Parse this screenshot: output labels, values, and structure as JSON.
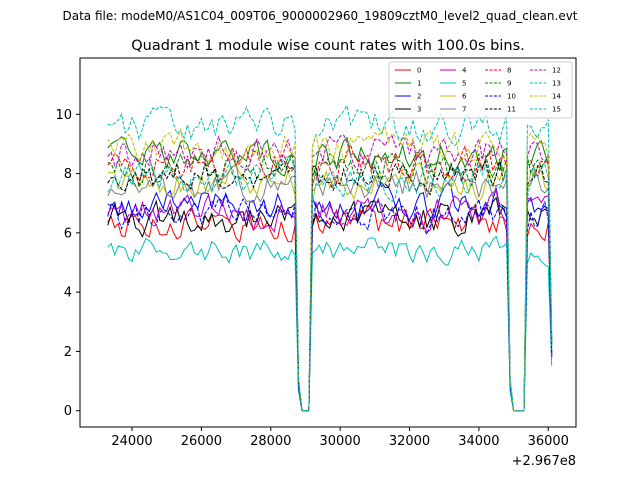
{
  "chart_data": {
    "type": "line",
    "suptitle": "Data file: modeM0/AS1C04_009T06_9000002960_19809cztM0_level2_quad_clean.evt",
    "title": "Quadrant 1 module wise count rates with 100.0s bins.",
    "xlabel": "",
    "ylabel": "",
    "x_offset_label": "+2.967e8",
    "x_offset": 296700000,
    "xlim": [
      22500,
      36800
    ],
    "ylim": [
      -0.55,
      11.9
    ],
    "x_ticks": [
      24000,
      26000,
      28000,
      30000,
      32000,
      34000,
      36000
    ],
    "x_tick_labels": [
      "24000",
      "26000",
      "28000",
      "30000",
      "32000",
      "34000",
      "36000"
    ],
    "y_ticks": [
      0,
      2,
      4,
      6,
      8,
      10
    ],
    "y_tick_labels": [
      "0",
      "2",
      "4",
      "6",
      "8",
      "10"
    ],
    "grid": false,
    "legend_position": "top-right",
    "x_start": 23300,
    "bin_width": 100,
    "n_points": 129,
    "gaps": [
      [
        28900,
        29000,
        29100
      ],
      [
        35000,
        35100,
        35200,
        35300
      ]
    ],
    "series": [
      {
        "name": "0",
        "color": "#ff0000",
        "dash": "solid",
        "mean": 6.3,
        "noise": 0.45,
        "seed": 1
      },
      {
        "name": "1",
        "color": "#008000",
        "dash": "solid",
        "mean": 8.6,
        "noise": 0.45,
        "seed": 2
      },
      {
        "name": "2",
        "color": "#0000ff",
        "dash": "solid",
        "mean": 7.0,
        "noise": 0.45,
        "seed": 3
      },
      {
        "name": "3",
        "color": "#000000",
        "dash": "solid",
        "mean": 6.5,
        "noise": 0.45,
        "seed": 4
      },
      {
        "name": "4",
        "color": "#bf00bf",
        "dash": "solid",
        "mean": 6.7,
        "noise": 0.45,
        "seed": 5
      },
      {
        "name": "5",
        "color": "#00bfbf",
        "dash": "solid",
        "mean": 5.4,
        "noise": 0.35,
        "seed": 6
      },
      {
        "name": "6",
        "color": "#bfbf00",
        "dash": "solid",
        "mean": 7.7,
        "noise": 0.45,
        "seed": 7
      },
      {
        "name": "7",
        "color": "#808080",
        "dash": "solid",
        "mean": 7.6,
        "noise": 0.45,
        "seed": 8
      },
      {
        "name": "8",
        "color": "#ff0000",
        "dash": "dashed",
        "mean": 8.3,
        "noise": 0.45,
        "seed": 9
      },
      {
        "name": "9",
        "color": "#008000",
        "dash": "dashed",
        "mean": 8.2,
        "noise": 0.45,
        "seed": 10
      },
      {
        "name": "10",
        "color": "#0000ff",
        "dash": "dashed",
        "mean": 6.6,
        "noise": 0.45,
        "seed": 11
      },
      {
        "name": "11",
        "color": "#000000",
        "dash": "dashed",
        "mean": 8.0,
        "noise": 0.45,
        "seed": 12
      },
      {
        "name": "12",
        "color": "#bf00bf",
        "dash": "dashed",
        "mean": 8.7,
        "noise": 0.45,
        "seed": 13
      },
      {
        "name": "13",
        "color": "#00bfbf",
        "dash": "dashed",
        "mean": 9.6,
        "noise": 0.45,
        "seed": 14
      },
      {
        "name": "14",
        "color": "#bfbf00",
        "dash": "dashed",
        "mean": 8.9,
        "noise": 0.45,
        "seed": 15
      },
      {
        "name": "15",
        "color": "#00bfbf",
        "dash": "dashed",
        "mean": 7.8,
        "noise": 0.45,
        "seed": 16
      }
    ]
  }
}
